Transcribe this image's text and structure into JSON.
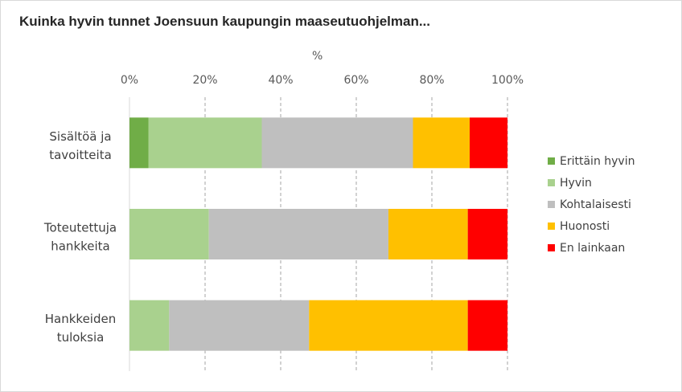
{
  "chart_data": {
    "type": "bar",
    "orientation": "horizontal",
    "stacked": "percent",
    "title": "Kuinka hyvin tunnet Joensuun kaupungin maaseutuohjelman...",
    "xlabel": "%",
    "x_ticks": [
      "0%",
      "20%",
      "40%",
      "60%",
      "80%",
      "100%"
    ],
    "xlim": [
      0,
      100
    ],
    "grid": "vertical dashed",
    "legend_position": "right",
    "categories": [
      "Sisältöä ja tavoitteita",
      "Toteutettuja hankkeita",
      "Hankkeiden tuloksia"
    ],
    "category_lines": [
      [
        "Sisältöä ja",
        "tavoitteita"
      ],
      [
        "Toteutettuja",
        "hankkeita"
      ],
      [
        "Hankkeiden",
        "tuloksia"
      ]
    ],
    "series": [
      {
        "name": "Erittäin hyvin",
        "color": "#70ad47",
        "values": [
          5,
          0,
          0
        ]
      },
      {
        "name": "Hyvin",
        "color": "#a9d18e",
        "values": [
          30,
          21,
          10.5
        ]
      },
      {
        "name": "Kohtalaisesti",
        "color": "#bfbfbf",
        "values": [
          40,
          47.5,
          37
        ]
      },
      {
        "name": "Huonosti",
        "color": "#ffc000",
        "values": [
          15,
          21,
          42
        ]
      },
      {
        "name": "En lainkaan",
        "color": "#ff0000",
        "values": [
          10,
          10.5,
          10.5
        ]
      }
    ]
  }
}
